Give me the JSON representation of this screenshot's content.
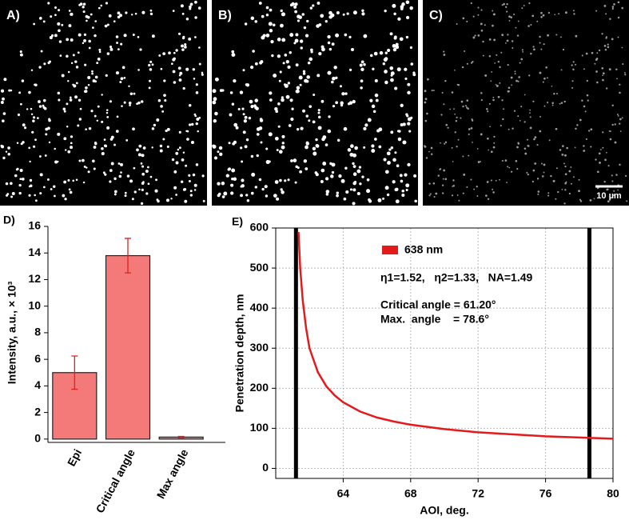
{
  "panels": [
    {
      "label": "A)"
    },
    {
      "label": "B)"
    },
    {
      "label": "C)"
    }
  ],
  "scale_bar": "10 µm",
  "chart_data": [
    {
      "type": "bar",
      "panel_label": "D)",
      "ylabel": "Intensity, a.u., × 10³",
      "categories": [
        "Epi",
        "Critical angle",
        "Max angle"
      ],
      "values": [
        5.0,
        13.8,
        0.15
      ],
      "errors": [
        1.25,
        1.3,
        0.05
      ],
      "color": "#f47a7a",
      "error_color": "#e02020",
      "ylim": [
        -0.25,
        16
      ],
      "yticks": [
        0,
        2,
        4,
        6,
        8,
        10,
        12,
        14,
        16
      ]
    },
    {
      "type": "line",
      "panel_label": "E)",
      "xlabel": "AOI, deg.",
      "ylabel": "Penetration depth, nm",
      "xlim": [
        60,
        80
      ],
      "ylim": [
        -25,
        600
      ],
      "xticks": [
        64,
        68,
        72,
        76,
        80
      ],
      "yticks": [
        0,
        100,
        200,
        300,
        400,
        500,
        600
      ],
      "grid": true,
      "series": [
        {
          "name": "638 nm",
          "color": "#e41a1c",
          "x": [
            61.35,
            61.45,
            61.6,
            61.8,
            62.0,
            62.5,
            63,
            63.5,
            64,
            65,
            66,
            67,
            68,
            70,
            72,
            74,
            76,
            78,
            80
          ],
          "values": [
            590,
            500,
            420,
            350,
            300,
            240,
            205,
            182,
            165,
            142,
            127,
            117,
            109,
            98,
            90,
            85,
            80,
            77,
            74
          ]
        }
      ],
      "vlines": [
        61.2,
        78.6
      ],
      "annotations": [
        "η1=1.52,   η2=1.33,   NA=1.49",
        "Critical angle = 61.20°",
        "Max.  angle    = 78.6°"
      ]
    }
  ]
}
